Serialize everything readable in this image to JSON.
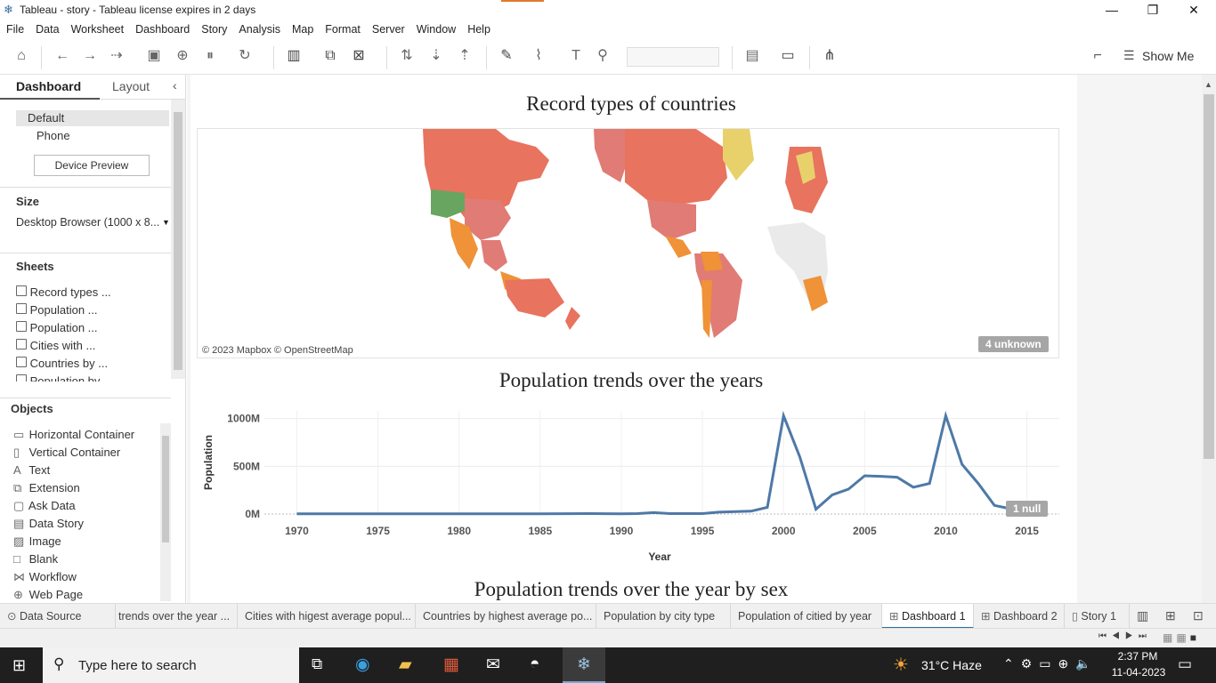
{
  "window": {
    "title": "Tableau - story - Tableau license expires in 2 days",
    "minimize": "—",
    "restore": "❐",
    "close": "✕"
  },
  "menu": [
    "File",
    "Data",
    "Worksheet",
    "Dashboard",
    "Story",
    "Analysis",
    "Map",
    "Format",
    "Server",
    "Window",
    "Help"
  ],
  "toolbar": {
    "show_me": "Show Me"
  },
  "left": {
    "tab_dashboard": "Dashboard",
    "tab_layout": "Layout",
    "devices": [
      "Default",
      "Phone"
    ],
    "device_preview": "Device Preview",
    "size_label": "Size",
    "size_value": "Desktop Browser (1000 x 8...",
    "sheets_label": "Sheets",
    "sheets": [
      "Record types ...",
      "Population ...",
      "Population ...",
      "Cities with ...",
      "Countries by ...",
      "Population by"
    ],
    "objects_label": "Objects",
    "objects": [
      "Horizontal Container",
      "Vertical Container",
      "Text",
      "Extension",
      "Ask Data",
      "Data Story",
      "Image",
      "Blank",
      "Workflow",
      "Web Page"
    ]
  },
  "dashboard": {
    "map_title": "Record types of countries",
    "map_credit": "© 2023 Mapbox © OpenStreetMap",
    "map_unknown": "4 unknown",
    "line_title": "Population trends over the years",
    "line_null": "1 null",
    "next_title": "Population trends over the year by sex"
  },
  "chart_data": {
    "type": "line",
    "title": "Population trends over the years",
    "xlabel": "Year",
    "ylabel": "Population",
    "x_ticks": [
      "1970",
      "1975",
      "1980",
      "1985",
      "1990",
      "1995",
      "2000",
      "2005",
      "2010",
      "2015"
    ],
    "y_ticks": [
      "1000M",
      "500M",
      "0M"
    ],
    "xlim": [
      1968,
      2017
    ],
    "ylim": [
      0,
      1080
    ],
    "color": "#4e79a7",
    "x": [
      1970,
      1975,
      1980,
      1985,
      1988,
      1990,
      1991,
      1992,
      1993,
      1995,
      1996,
      1998,
      1999,
      2000,
      2001,
      2002,
      2003,
      2004,
      2005,
      2006,
      2007,
      2008,
      2009,
      2010,
      2011,
      2012,
      2013,
      2014
    ],
    "y": [
      2,
      2,
      2,
      2,
      5,
      2,
      5,
      15,
      5,
      5,
      20,
      30,
      70,
      1030,
      600,
      50,
      200,
      260,
      400,
      395,
      385,
      280,
      320,
      1030,
      520,
      320,
      90,
      55
    ]
  },
  "tabs": [
    "Data Source",
    "trends over the year ...",
    "Cities with higest average popul...",
    "Countries by highest average po...",
    "Population by  city type",
    "Population of citied by year",
    "Dashboard 1",
    "Dashboard 2",
    "Story 1"
  ],
  "taskbar": {
    "search": "Type here to search",
    "weather": "31°C  Haze",
    "time": "2:37 PM",
    "date": "11-04-2023"
  }
}
